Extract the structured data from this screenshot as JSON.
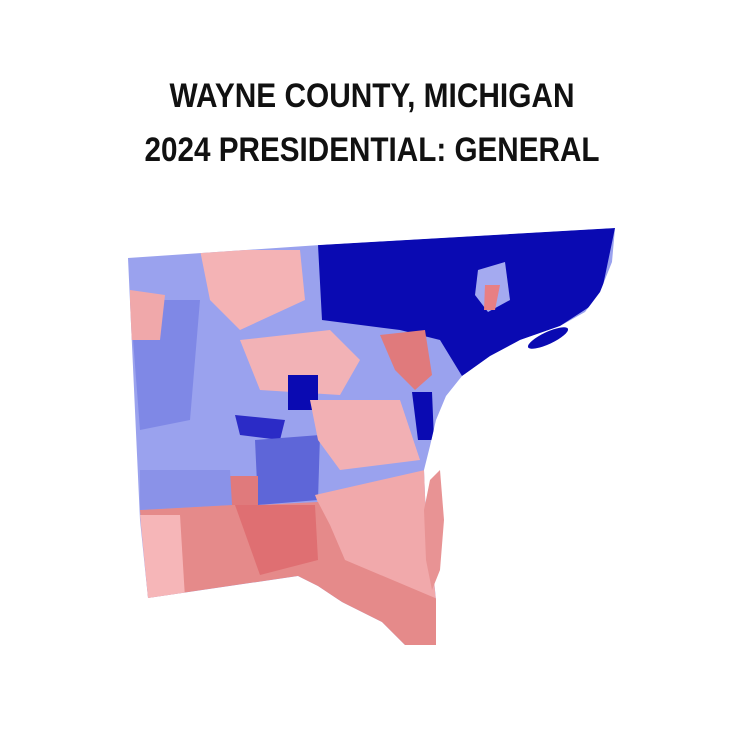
{
  "title": [
    "WAYNE COUNTY, MICHIGAN",
    "2024 PRESIDENTIAL: GENERAL"
  ]
}
